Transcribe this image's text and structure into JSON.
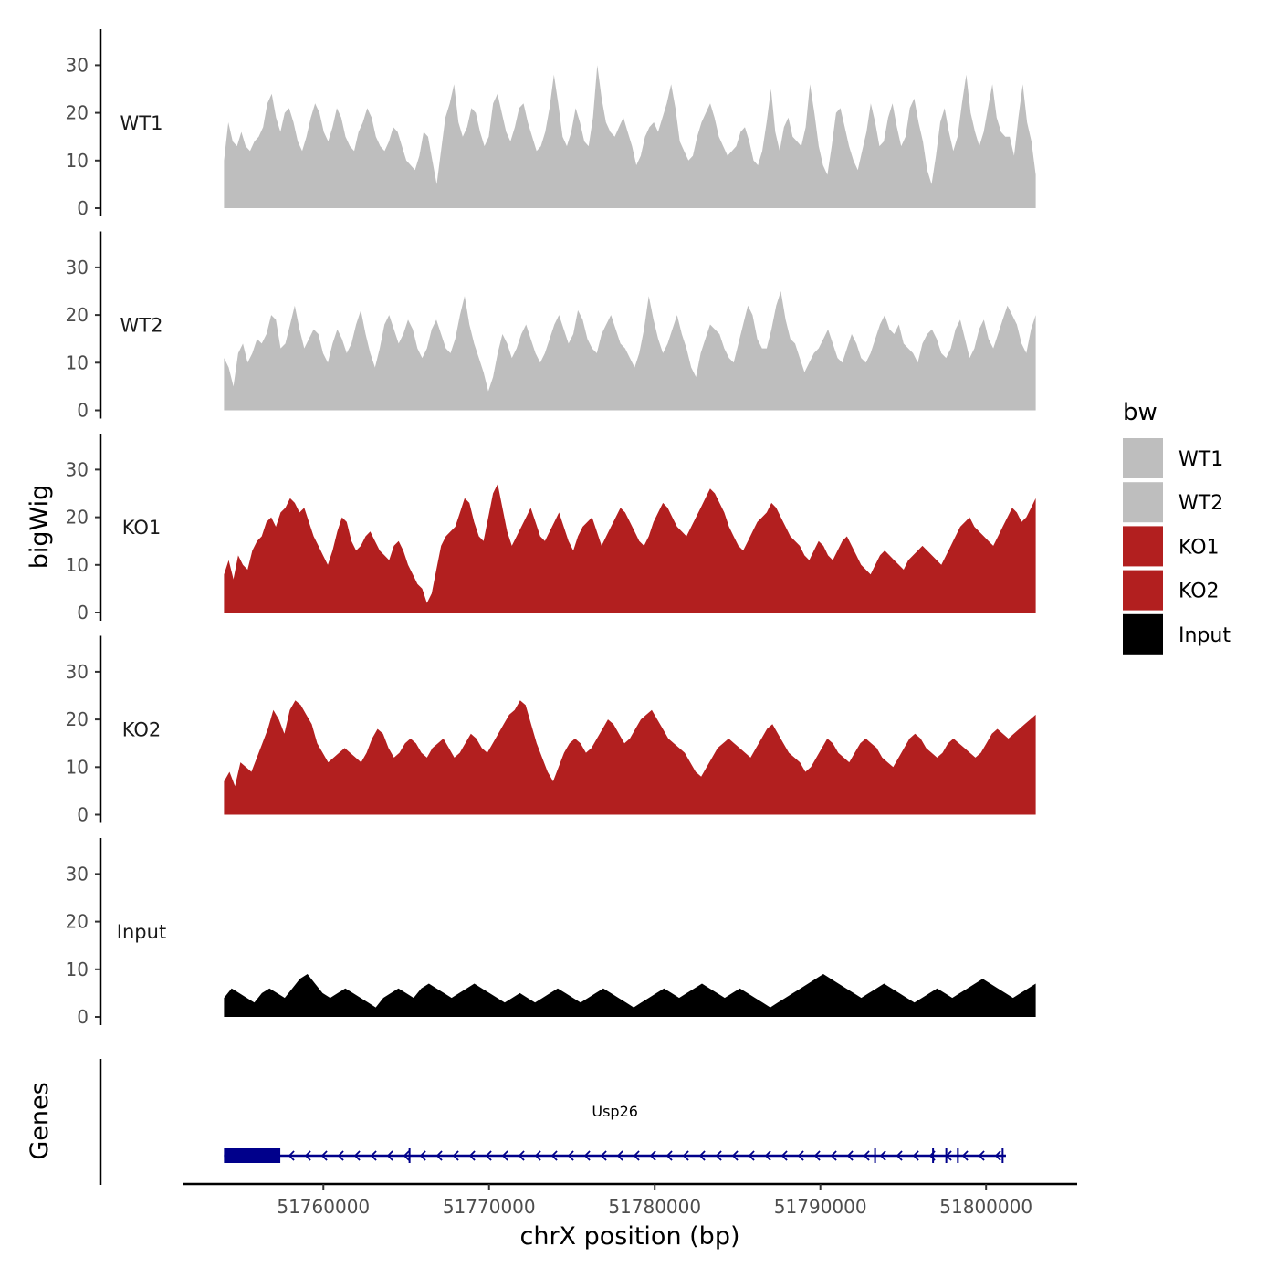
{
  "chart_data": {
    "type": "area",
    "ylabel": "bigWig",
    "xlabel": "chrX position (bp)",
    "genes_label": "Genes",
    "region": {
      "chrom": "chrX",
      "start": 51754000,
      "end": 51803000
    },
    "xlim": [
      51751500,
      51805500
    ],
    "ylim": [
      0,
      37
    ],
    "y_ticks": [
      0,
      10,
      20,
      30
    ],
    "y_tick_labels": [
      "0",
      "10",
      "20",
      "30"
    ],
    "x_ticks": [
      51760000,
      51770000,
      51780000,
      51790000,
      51800000
    ],
    "x_tick_labels": [
      "51760000",
      "51770000",
      "51780000",
      "51790000",
      "51800000"
    ],
    "legend": {
      "title": "bw",
      "position": "right",
      "entries": [
        {
          "label": "WT1",
          "color": "#BEBEBE"
        },
        {
          "label": "WT2",
          "color": "#BEBEBE"
        },
        {
          "label": "KO1",
          "color": "#B21F1F"
        },
        {
          "label": "KO2",
          "color": "#B21F1F"
        },
        {
          "label": "Input",
          "color": "#000000"
        }
      ]
    },
    "series": [
      {
        "name": "WT1",
        "color": "#BEBEBE",
        "values": [
          10,
          18,
          14,
          13,
          16,
          13,
          12,
          14,
          15,
          17,
          22,
          24,
          19,
          16,
          20,
          21,
          18,
          14,
          12,
          15,
          19,
          22,
          20,
          16,
          14,
          17,
          21,
          19,
          15,
          13,
          12,
          16,
          18,
          21,
          19,
          15,
          13,
          12,
          14,
          17,
          16,
          13,
          10,
          9,
          8,
          11,
          16,
          15,
          10,
          5,
          12,
          19,
          22,
          26,
          18,
          15,
          17,
          21,
          20,
          16,
          13,
          15,
          22,
          24,
          20,
          16,
          14,
          17,
          21,
          22,
          18,
          15,
          12,
          13,
          16,
          21,
          28,
          22,
          15,
          13,
          16,
          21,
          18,
          14,
          13,
          19,
          30,
          23,
          18,
          16,
          15,
          17,
          19,
          16,
          13,
          9,
          11,
          15,
          17,
          18,
          16,
          19,
          22,
          26,
          21,
          14,
          12,
          10,
          11,
          15,
          18,
          20,
          22,
          19,
          15,
          13,
          11,
          12,
          13,
          16,
          17,
          14,
          10,
          9,
          12,
          18,
          25,
          16,
          12,
          17,
          19,
          15,
          14,
          13,
          17,
          26,
          20,
          13,
          9,
          7,
          13,
          20,
          21,
          17,
          13,
          10,
          8,
          12,
          16,
          22,
          18,
          13,
          14,
          19,
          22,
          17,
          13,
          15,
          21,
          23,
          18,
          14,
          8,
          5,
          11,
          18,
          21,
          16,
          12,
          15,
          22,
          28,
          20,
          16,
          13,
          16,
          21,
          26,
          19,
          16,
          15,
          15,
          11,
          19,
          26,
          18,
          14,
          7
        ]
      },
      {
        "name": "WT2",
        "color": "#BEBEBE",
        "values": [
          11,
          9,
          5,
          12,
          14,
          10,
          12,
          15,
          14,
          16,
          20,
          19,
          13,
          14,
          18,
          22,
          17,
          13,
          15,
          17,
          16,
          12,
          10,
          14,
          17,
          15,
          12,
          14,
          18,
          21,
          16,
          12,
          9,
          13,
          18,
          20,
          17,
          14,
          16,
          19,
          17,
          13,
          11,
          13,
          17,
          19,
          16,
          13,
          12,
          15,
          20,
          24,
          18,
          14,
          11,
          8,
          4,
          7,
          12,
          16,
          14,
          11,
          13,
          16,
          18,
          15,
          12,
          10,
          12,
          15,
          18,
          20,
          17,
          14,
          16,
          21,
          19,
          15,
          13,
          12,
          16,
          18,
          20,
          17,
          14,
          13,
          11,
          9,
          12,
          17,
          24,
          19,
          15,
          12,
          14,
          17,
          20,
          16,
          13,
          9,
          7,
          12,
          15,
          18,
          17,
          16,
          13,
          11,
          10,
          14,
          18,
          22,
          20,
          15,
          13,
          13,
          17,
          22,
          25,
          19,
          15,
          14,
          11,
          8,
          10,
          12,
          13,
          15,
          17,
          14,
          11,
          10,
          13,
          16,
          14,
          11,
          10,
          12,
          15,
          18,
          20,
          17,
          16,
          18,
          14,
          13,
          12,
          10,
          14,
          16,
          17,
          15,
          12,
          11,
          13,
          17,
          19,
          15,
          11,
          13,
          17,
          19,
          15,
          13,
          16,
          19,
          22,
          20,
          18,
          14,
          12,
          17,
          20
        ]
      },
      {
        "name": "KO1",
        "color": "#B21F1F",
        "values": [
          8,
          11,
          7,
          12,
          10,
          9,
          13,
          15,
          16,
          19,
          20,
          18,
          21,
          22,
          24,
          23,
          21,
          22,
          19,
          16,
          14,
          12,
          10,
          13,
          17,
          20,
          19,
          15,
          13,
          14,
          16,
          17,
          15,
          13,
          12,
          11,
          14,
          15,
          13,
          10,
          8,
          6,
          5,
          2,
          4,
          9,
          14,
          16,
          17,
          18,
          21,
          24,
          23,
          19,
          16,
          15,
          20,
          25,
          27,
          22,
          17,
          14,
          16,
          18,
          20,
          22,
          19,
          16,
          15,
          17,
          19,
          21,
          18,
          15,
          13,
          16,
          18,
          19,
          20,
          17,
          14,
          16,
          18,
          20,
          22,
          21,
          19,
          17,
          15,
          14,
          16,
          19,
          21,
          23,
          22,
          20,
          18,
          17,
          16,
          18,
          20,
          22,
          24,
          26,
          25,
          23,
          21,
          18,
          16,
          14,
          13,
          15,
          17,
          19,
          20,
          21,
          23,
          22,
          20,
          18,
          16,
          15,
          14,
          12,
          11,
          13,
          15,
          14,
          12,
          11,
          13,
          15,
          16,
          14,
          12,
          10,
          9,
          8,
          10,
          12,
          13,
          12,
          11,
          10,
          9,
          11,
          12,
          13,
          14,
          13,
          12,
          11,
          10,
          12,
          14,
          16,
          18,
          19,
          20,
          18,
          17,
          16,
          15,
          14,
          16,
          18,
          20,
          22,
          21,
          19,
          20,
          22,
          24
        ]
      },
      {
        "name": "KO2",
        "color": "#B21F1F",
        "values": [
          7,
          9,
          6,
          11,
          10,
          9,
          12,
          15,
          18,
          22,
          20,
          17,
          22,
          24,
          23,
          21,
          19,
          15,
          13,
          11,
          12,
          13,
          14,
          13,
          12,
          11,
          13,
          16,
          18,
          17,
          14,
          12,
          13,
          15,
          16,
          15,
          13,
          12,
          14,
          15,
          16,
          14,
          12,
          13,
          15,
          17,
          16,
          14,
          13,
          15,
          17,
          19,
          21,
          22,
          24,
          23,
          19,
          15,
          12,
          9,
          7,
          10,
          13,
          15,
          16,
          15,
          13,
          14,
          16,
          18,
          20,
          19,
          17,
          15,
          16,
          18,
          20,
          21,
          22,
          20,
          18,
          16,
          15,
          14,
          13,
          11,
          9,
          8,
          10,
          12,
          14,
          15,
          16,
          15,
          14,
          13,
          12,
          14,
          16,
          18,
          19,
          17,
          15,
          13,
          12,
          11,
          9,
          10,
          12,
          14,
          16,
          15,
          13,
          12,
          11,
          13,
          15,
          16,
          15,
          14,
          12,
          11,
          10,
          12,
          14,
          16,
          17,
          16,
          14,
          13,
          12,
          13,
          15,
          16,
          15,
          14,
          13,
          12,
          13,
          15,
          17,
          18,
          17,
          16,
          17,
          18,
          19,
          20,
          21
        ]
      },
      {
        "name": "Input",
        "color": "#000000",
        "values": [
          4,
          6,
          5,
          4,
          3,
          5,
          6,
          5,
          4,
          6,
          8,
          9,
          7,
          5,
          4,
          5,
          6,
          5,
          4,
          3,
          2,
          4,
          5,
          6,
          5,
          4,
          6,
          7,
          6,
          5,
          4,
          5,
          6,
          7,
          6,
          5,
          4,
          3,
          4,
          5,
          4,
          3,
          4,
          5,
          6,
          5,
          4,
          3,
          4,
          5,
          6,
          5,
          4,
          3,
          2,
          3,
          4,
          5,
          6,
          5,
          4,
          5,
          6,
          7,
          6,
          5,
          4,
          5,
          6,
          5,
          4,
          3,
          2,
          3,
          4,
          5,
          6,
          7,
          8,
          9,
          8,
          7,
          6,
          5,
          4,
          5,
          6,
          7,
          6,
          5,
          4,
          3,
          4,
          5,
          6,
          5,
          4,
          5,
          6,
          7,
          8,
          7,
          6,
          5,
          4,
          5,
          6,
          7
        ]
      }
    ],
    "genes": [
      {
        "name": "Usp26",
        "start": 51754000,
        "end": 51801200,
        "strand": "-",
        "color": "#00008B",
        "thick_block": [
          51754000,
          51757400
        ],
        "exons": [
          51765200,
          51793300,
          51796800,
          51797600,
          51798300,
          51801000
        ]
      }
    ]
  }
}
